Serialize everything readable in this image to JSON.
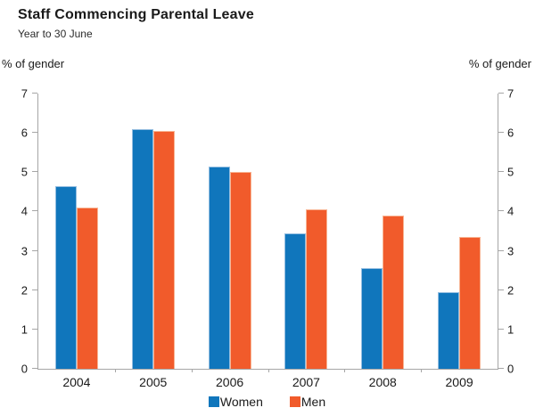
{
  "header": {
    "title": "Staff Commencing Parental Leave",
    "subtitle": "Year to 30 June"
  },
  "axis_captions": {
    "left": "% of gender",
    "right": "% of gender"
  },
  "chart_data": {
    "type": "bar",
    "title": "Staff Commencing Parental Leave",
    "subtitle": "Year to 30 June",
    "categories": [
      "2004",
      "2005",
      "2006",
      "2007",
      "2008",
      "2009"
    ],
    "series": [
      {
        "name": "Women",
        "color": "#1076BC",
        "edge_color": "#93BDE0",
        "values": [
          4.65,
          6.1,
          5.15,
          3.45,
          2.55,
          1.95
        ]
      },
      {
        "name": "Men",
        "color": "#F15B2B",
        "edge_color": "#F8B493",
        "values": [
          4.1,
          6.05,
          5.0,
          4.05,
          3.9,
          3.35
        ]
      }
    ],
    "ylabel_left": "% of gender",
    "ylabel_right": "% of gender",
    "ylim": [
      0,
      7
    ],
    "y_ticks": [
      0,
      1,
      2,
      3,
      4,
      5,
      6,
      7
    ],
    "grid": false,
    "legend_position": "bottom-center",
    "axis_color": "#a6a6a6"
  },
  "legend": {
    "items": [
      {
        "label": "Women",
        "color": "#1076BC"
      },
      {
        "label": "Men",
        "color": "#F15B2B"
      }
    ]
  }
}
